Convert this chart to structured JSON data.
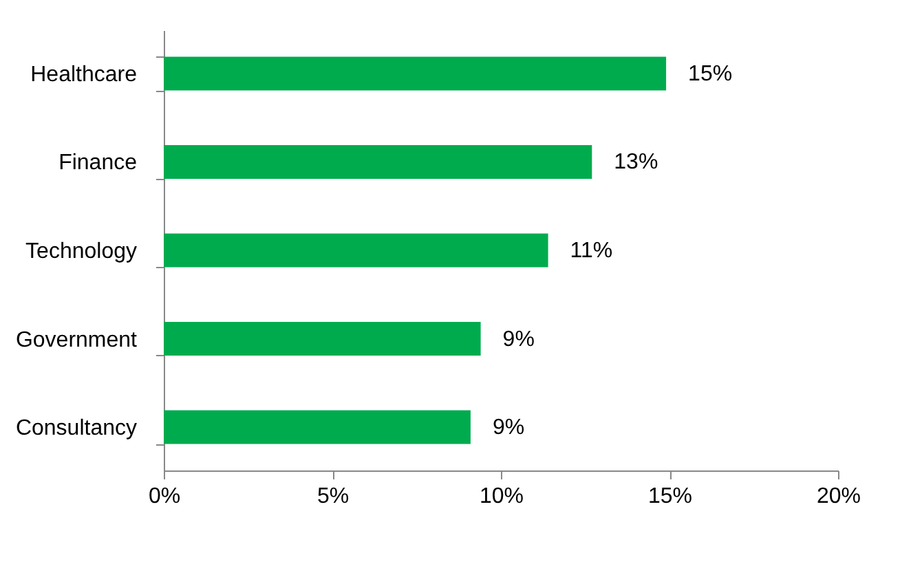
{
  "chart_data": {
    "type": "bar",
    "orientation": "horizontal",
    "categories": [
      "Healthcare",
      "Finance",
      "Technology",
      "Government",
      "Consultancy"
    ],
    "values": [
      14.9,
      12.7,
      11.4,
      9.4,
      9.1
    ],
    "value_labels": [
      "15%",
      "13%",
      "11%",
      "9%",
      "9%"
    ],
    "color": "#00ab4e",
    "xlim": [
      0,
      20
    ],
    "xticks": [
      {
        "value": 0,
        "label": "0%"
      },
      {
        "value": 5,
        "label": "5%"
      },
      {
        "value": 10,
        "label": "10%"
      },
      {
        "value": 15,
        "label": "15%"
      },
      {
        "value": 20,
        "label": "20%"
      }
    ],
    "grid": false
  }
}
